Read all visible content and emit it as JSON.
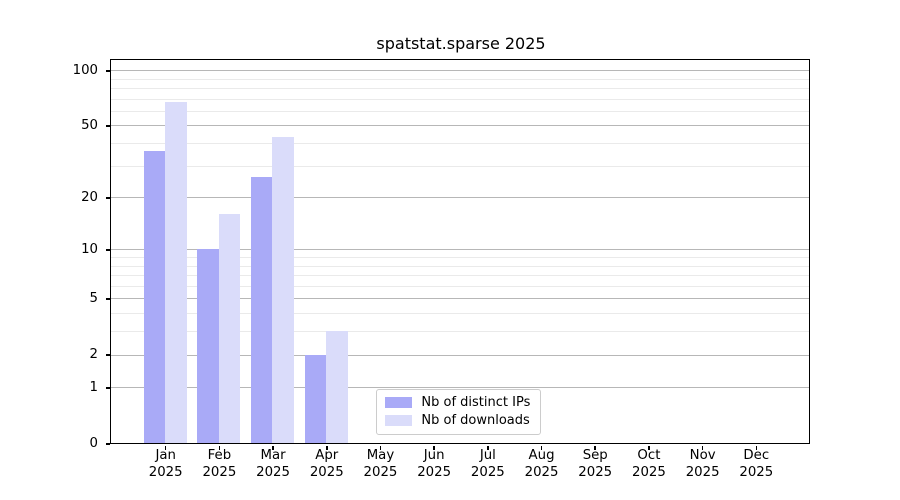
{
  "chart_data": {
    "type": "bar",
    "title": "spatstat.sparse 2025",
    "categories": [
      "Jan",
      "Feb",
      "Mar",
      "Apr",
      "May",
      "Jun",
      "Jul",
      "Aug",
      "Sep",
      "Oct",
      "Nov",
      "Dec"
    ],
    "category_year": "2025",
    "series": [
      {
        "key": "distinct-ips",
        "name": "Nb of distinct IPs",
        "color": "#a9aaf7",
        "values": [
          36,
          10,
          26,
          2,
          0,
          0,
          0,
          0,
          0,
          0,
          0,
          0
        ]
      },
      {
        "key": "downloads",
        "name": "Nb of downloads",
        "color": "#dadcfa",
        "values": [
          67,
          16,
          43,
          3,
          0,
          0,
          0,
          0,
          0,
          0,
          0,
          0
        ]
      }
    ],
    "xlabel": "",
    "ylabel": "",
    "yscale": "log1p",
    "ylim": [
      0,
      113
    ],
    "yticks": [
      0,
      1,
      2,
      5,
      10,
      20,
      50,
      100
    ],
    "yticks_minor": [
      3,
      4,
      6,
      7,
      8,
      9,
      30,
      40,
      60,
      70,
      80,
      90
    ],
    "grid": "horizontal, major and minor",
    "legend_position": "lower center, inside plot"
  }
}
